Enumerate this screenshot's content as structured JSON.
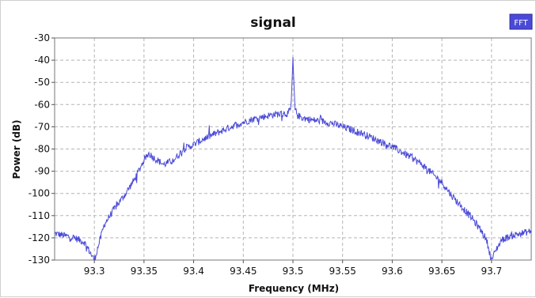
{
  "chart_data": {
    "type": "line",
    "title": "signal",
    "xlabel": "Frequency (MHz)",
    "ylabel": "Power (dB)",
    "xlim": [
      93.26,
      93.74
    ],
    "ylim": [
      -130,
      -30
    ],
    "x_ticks": [
      93.3,
      93.35,
      93.4,
      93.45,
      93.5,
      93.55,
      93.6,
      93.65,
      93.7
    ],
    "x_tick_labels": [
      "93.3",
      "93.35",
      "93.4",
      "93.45",
      "93.5",
      "93.55",
      "93.6",
      "93.65",
      "93.7"
    ],
    "y_ticks": [
      -30,
      -40,
      -50,
      -60,
      -70,
      -80,
      -90,
      -100,
      -110,
      -120,
      -130
    ],
    "y_tick_labels": [
      "-30",
      "-40",
      "-50",
      "-60",
      "-70",
      "-80",
      "-90",
      "-100",
      "-110",
      "-120",
      "-130"
    ],
    "grid": true,
    "legend_position": "top-right",
    "series": [
      {
        "name": "FFT",
        "color": "#4a4ad8",
        "x": [
          93.26,
          93.27,
          93.28,
          93.29,
          93.295,
          93.3,
          93.305,
          93.31,
          93.32,
          93.33,
          93.34,
          93.35,
          93.355,
          93.36,
          93.37,
          93.38,
          93.39,
          93.4,
          93.41,
          93.42,
          93.43,
          93.44,
          93.45,
          93.46,
          93.47,
          93.48,
          93.49,
          93.495,
          93.498,
          93.5,
          93.502,
          93.505,
          93.51,
          93.52,
          93.53,
          93.54,
          93.55,
          93.56,
          93.57,
          93.58,
          93.59,
          93.6,
          93.61,
          93.62,
          93.63,
          93.64,
          93.65,
          93.66,
          93.67,
          93.68,
          93.69,
          93.695,
          93.7,
          93.705,
          93.71,
          93.72,
          93.73,
          93.74
        ],
        "y": [
          -118,
          -119,
          -120,
          -122,
          -126,
          -130,
          -122,
          -114,
          -107,
          -101,
          -94,
          -85,
          -82,
          -84,
          -87,
          -85,
          -80,
          -78,
          -75.5,
          -73.5,
          -71.5,
          -69.5,
          -68,
          -66.5,
          -65.5,
          -64.5,
          -64,
          -64,
          -62,
          -40,
          -62,
          -65,
          -66,
          -67,
          -67.5,
          -68.5,
          -70,
          -71.5,
          -73,
          -75,
          -77,
          -79,
          -81.5,
          -84,
          -87,
          -91,
          -95,
          -101,
          -106,
          -111,
          -117,
          -121,
          -130,
          -125,
          -121,
          -119,
          -118,
          -117
        ]
      }
    ]
  }
}
